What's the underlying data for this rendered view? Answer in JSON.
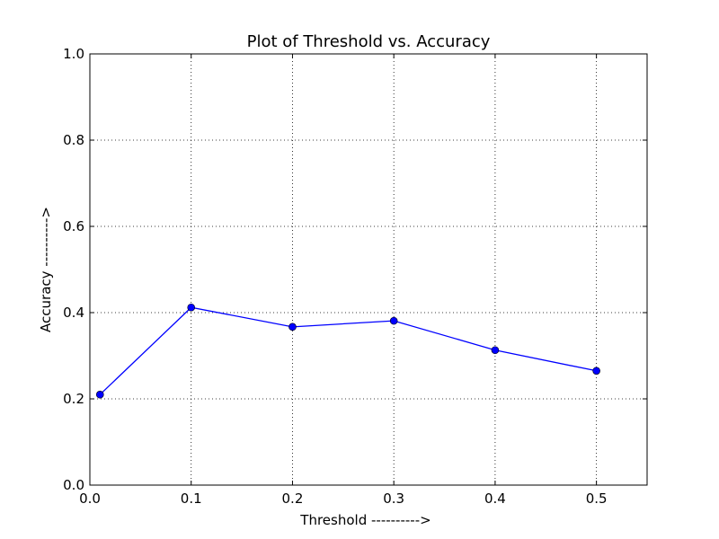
{
  "chart_data": {
    "type": "line",
    "title": "Plot of Threshold vs. Accuracy",
    "xlabel": "Threshold ---------->",
    "ylabel": "Accuracy ---------->",
    "xlim": [
      0.0,
      0.55
    ],
    "ylim": [
      0.0,
      1.0
    ],
    "xticks": [
      0.0,
      0.1,
      0.2,
      0.3,
      0.4,
      0.5
    ],
    "yticks": [
      0.0,
      0.2,
      0.4,
      0.6,
      0.8,
      1.0
    ],
    "xtick_labels": [
      "0.0",
      "0.1",
      "0.2",
      "0.3",
      "0.4",
      "0.5"
    ],
    "ytick_labels": [
      "0.0",
      "0.2",
      "0.4",
      "0.6",
      "0.8",
      "1.0"
    ],
    "grid": true,
    "series": [
      {
        "color": "#0000ff",
        "x": [
          0.01,
          0.1,
          0.2,
          0.3,
          0.4,
          0.5
        ],
        "y": [
          0.21,
          0.412,
          0.367,
          0.381,
          0.313,
          0.265
        ]
      }
    ]
  }
}
